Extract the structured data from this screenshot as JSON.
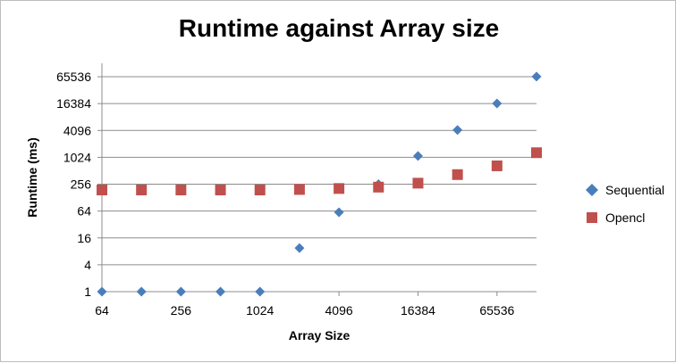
{
  "chart_data": {
    "type": "scatter",
    "title": "Runtime against Array size",
    "xlabel": "Array Size",
    "ylabel": "Runtime (ms)",
    "xscale": "log2",
    "yscale": "log2",
    "xlim": [
      64,
      131072
    ],
    "ylim": [
      1,
      131072
    ],
    "x_ticks": [
      "64",
      "256",
      "1024",
      "4096",
      "16384",
      "65536"
    ],
    "y_ticks": [
      "1",
      "4",
      "16",
      "64",
      "256",
      "1024",
      "4096",
      "16384",
      "65536"
    ],
    "grid": "horizontal",
    "legend_position": "right",
    "series": [
      {
        "name": "Sequential",
        "marker": "diamond",
        "color": "#4a7ebb",
        "points": [
          {
            "x": 64,
            "y": 1
          },
          {
            "x": 128,
            "y": 1
          },
          {
            "x": 256,
            "y": 1
          },
          {
            "x": 512,
            "y": 1
          },
          {
            "x": 1024,
            "y": 1
          },
          {
            "x": 2048,
            "y": 9.5
          },
          {
            "x": 4096,
            "y": 60
          },
          {
            "x": 8192,
            "y": 256
          },
          {
            "x": 16384,
            "y": 1100
          },
          {
            "x": 32768,
            "y": 4200
          },
          {
            "x": 65536,
            "y": 16500
          },
          {
            "x": 131072,
            "y": 66000
          }
        ]
      },
      {
        "name": "Opencl",
        "marker": "square",
        "color": "#c0504d",
        "points": [
          {
            "x": 64,
            "y": 190
          },
          {
            "x": 128,
            "y": 190
          },
          {
            "x": 256,
            "y": 190
          },
          {
            "x": 512,
            "y": 190
          },
          {
            "x": 1024,
            "y": 190
          },
          {
            "x": 2048,
            "y": 195
          },
          {
            "x": 4096,
            "y": 205
          },
          {
            "x": 8192,
            "y": 220
          },
          {
            "x": 16384,
            "y": 270
          },
          {
            "x": 32768,
            "y": 420
          },
          {
            "x": 65536,
            "y": 660
          },
          {
            "x": 131072,
            "y": 1300
          }
        ]
      }
    ]
  }
}
